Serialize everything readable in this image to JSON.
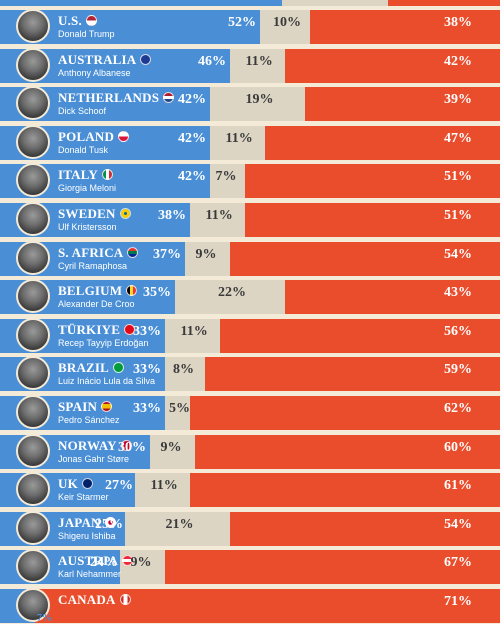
{
  "colors": {
    "approve": "#4a8fd6",
    "neutral": "#dcd5c4",
    "disapprove": "#ea4d2c",
    "background": "#f3ead8"
  },
  "chart_data": {
    "type": "bar",
    "stacked": true,
    "orientation": "horizontal",
    "series": [
      {
        "name": "",
        "color": "#4a8fd6",
        "values": [
          52,
          46,
          42,
          42,
          42,
          38,
          37,
          35,
          33,
          33,
          33,
          30,
          27,
          25,
          24,
          7
        ]
      },
      {
        "name": "",
        "color": "#dcd5c4",
        "values": [
          10,
          11,
          19,
          11,
          7,
          11,
          9,
          22,
          11,
          8,
          5,
          9,
          11,
          21,
          9,
          null
        ]
      },
      {
        "name": "",
        "color": "#ea4d2c",
        "values": [
          38,
          42,
          39,
          47,
          51,
          51,
          54,
          43,
          56,
          59,
          62,
          60,
          61,
          54,
          67,
          71
        ]
      }
    ],
    "rows": [
      {
        "country": "U.S.",
        "leader": "Donald Trump",
        "flag": "us-flag",
        "approve": "52%",
        "neutral": "10%",
        "disapprove": "38%"
      },
      {
        "country": "AUSTRALIA",
        "leader": "Anthony Albanese",
        "flag": "australia-flag",
        "approve": "46%",
        "neutral": "11%",
        "disapprove": "42%"
      },
      {
        "country": "NETHERLANDS",
        "leader": "Dick Schoof",
        "flag": "netherlands-flag",
        "approve": "42%",
        "neutral": "19%",
        "disapprove": "39%"
      },
      {
        "country": "POLAND",
        "leader": "Donald Tusk",
        "flag": "poland-flag",
        "approve": "42%",
        "neutral": "11%",
        "disapprove": "47%"
      },
      {
        "country": "ITALY",
        "leader": "Giorgia Meloni",
        "flag": "italy-flag",
        "approve": "42%",
        "neutral": "7%",
        "disapprove": "51%"
      },
      {
        "country": "SWEDEN",
        "leader": "Ulf Kristersson",
        "flag": "sweden-flag",
        "approve": "38%",
        "neutral": "11%",
        "disapprove": "51%"
      },
      {
        "country": "S. AFRICA",
        "leader": "Cyril Ramaphosa",
        "flag": "south-africa-flag",
        "approve": "37%",
        "neutral": "9%",
        "disapprove": "54%"
      },
      {
        "country": "BELGIUM",
        "leader": "Alexander De Croo",
        "flag": "belgium-flag",
        "approve": "35%",
        "neutral": "22%",
        "disapprove": "43%"
      },
      {
        "country": "TÜRKIYE",
        "leader": "Recep Tayyip Erdoğan",
        "flag": "turkiye-flag",
        "approve": "33%",
        "neutral": "11%",
        "disapprove": "56%"
      },
      {
        "country": "BRAZIL",
        "leader": "Luiz Inácio Lula da Silva",
        "flag": "brazil-flag",
        "approve": "33%",
        "neutral": "8%",
        "disapprove": "59%"
      },
      {
        "country": "SPAIN",
        "leader": "Pedro Sánchez",
        "flag": "spain-flag",
        "approve": "33%",
        "neutral": "5%",
        "disapprove": "62%"
      },
      {
        "country": "NORWAY",
        "leader": "Jonas Gahr Støre",
        "flag": "norway-flag",
        "approve": "30%",
        "neutral": "9%",
        "disapprove": "60%"
      },
      {
        "country": "UK",
        "leader": "Keir Starmer",
        "flag": "uk-flag",
        "approve": "27%",
        "neutral": "11%",
        "disapprove": "61%"
      },
      {
        "country": "JAPAN",
        "leader": "Shigeru Ishiba",
        "flag": "japan-flag",
        "approve": "25%",
        "neutral": "21%",
        "disapprove": "54%"
      },
      {
        "country": "AUSTRIA",
        "leader": "Karl Nehammer",
        "flag": "austria-flag",
        "approve": "24%",
        "neutral": "9%",
        "disapprove": "67%"
      },
      {
        "country": "CANADA",
        "leader": "",
        "flag": "canada-flag",
        "approve": "7%",
        "neutral": "",
        "disapprove": "71%"
      }
    ]
  }
}
